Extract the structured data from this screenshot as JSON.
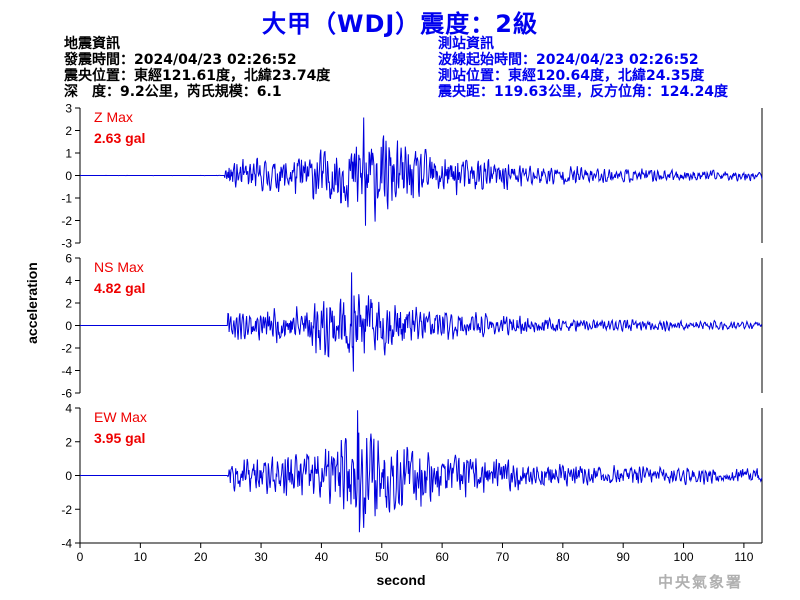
{
  "title": "大甲（WDJ）震度：2級",
  "event_info": {
    "heading": "地震資訊",
    "origin_time": "發震時間：2024/04/23 02:26:52",
    "epicenter": "震央位置：東經121.61度，北緯23.74度",
    "depth_magnitude": "深　度：9.2公里，芮氏規模：6.1"
  },
  "station_info": {
    "heading": "測站資訊",
    "wave_start": "波線起始時間：2024/04/23 02:26:52",
    "location": "測站位置：東經120.64度，北緯24.35度",
    "distance": "震央距：119.63公里，反方位角：124.24度"
  },
  "agency": "中央氣象署",
  "colors": {
    "trace": "#0000dd",
    "max_label": "#ee0000",
    "title": "#0000ee"
  },
  "chart_data": {
    "type": "line",
    "xlabel": "second",
    "ylabel": "acceleration",
    "xlim": [
      0,
      113
    ],
    "xticks": [
      0,
      10,
      20,
      30,
      40,
      50,
      60,
      70,
      80,
      90,
      100,
      110
    ],
    "panels": [
      {
        "component": "Z",
        "max_title": "Z Max",
        "max_value": "2.63 gal",
        "ylim": [
          -3,
          3
        ],
        "yticks": [
          -3,
          -2,
          -1,
          0,
          1,
          2,
          3
        ],
        "onset": 24,
        "peak_time": 47,
        "peak": 2.63,
        "noise": 0.05,
        "coda": 0.15,
        "decay": 16,
        "seed": 11
      },
      {
        "component": "NS",
        "max_title": "NS Max",
        "max_value": "4.82 gal",
        "ylim": [
          -6,
          6
        ],
        "yticks": [
          -6,
          -4,
          -2,
          0,
          2,
          4,
          6
        ],
        "onset": 24.5,
        "peak_time": 45,
        "peak": 4.82,
        "noise": 0.02,
        "coda": 0.3,
        "decay": 13,
        "seed": 23
      },
      {
        "component": "EW",
        "max_title": "EW Max",
        "max_value": "3.95 gal",
        "ylim": [
          -4,
          4
        ],
        "yticks": [
          -4,
          -2,
          0,
          2,
          4
        ],
        "onset": 24.5,
        "peak_time": 46,
        "peak": 3.95,
        "noise": 0.02,
        "coda": 0.35,
        "decay": 14,
        "seed": 37
      }
    ]
  }
}
